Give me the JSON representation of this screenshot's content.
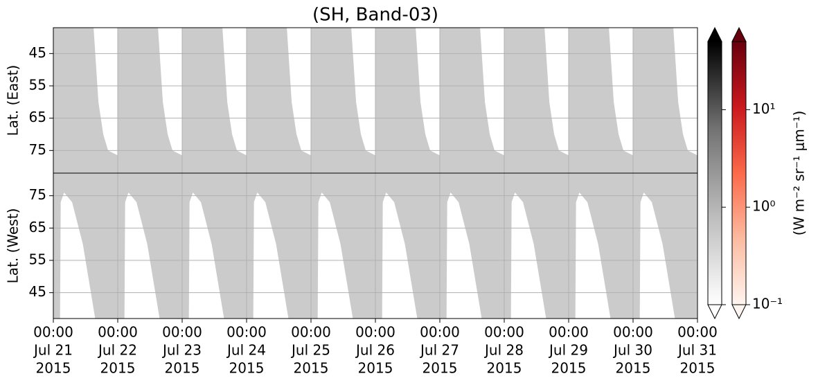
{
  "chart_data": {
    "type": "area",
    "title": "(SH, Band-03)",
    "xlim": [
      "2015-07-21 00:00",
      "2015-07-31 00:00"
    ],
    "xticks": [
      {
        "value": "2015-07-21 00:00",
        "label": [
          "00:00",
          "Jul 21",
          "2015"
        ]
      },
      {
        "value": "2015-07-22 00:00",
        "label": [
          "00:00",
          "Jul 22",
          "2015"
        ]
      },
      {
        "value": "2015-07-23 00:00",
        "label": [
          "00:00",
          "Jul 23",
          "2015"
        ]
      },
      {
        "value": "2015-07-24 00:00",
        "label": [
          "00:00",
          "Jul 24",
          "2015"
        ]
      },
      {
        "value": "2015-07-25 00:00",
        "label": [
          "00:00",
          "Jul 25",
          "2015"
        ]
      },
      {
        "value": "2015-07-26 00:00",
        "label": [
          "00:00",
          "Jul 26",
          "2015"
        ]
      },
      {
        "value": "2015-07-27 00:00",
        "label": [
          "00:00",
          "Jul 27",
          "2015"
        ]
      },
      {
        "value": "2015-07-28 00:00",
        "label": [
          "00:00",
          "Jul 28",
          "2015"
        ]
      },
      {
        "value": "2015-07-29 00:00",
        "label": [
          "00:00",
          "Jul 29",
          "2015"
        ]
      },
      {
        "value": "2015-07-30 00:00",
        "label": [
          "00:00",
          "Jul 30",
          "2015"
        ]
      },
      {
        "value": "2015-07-31 00:00",
        "label": [
          "00:00",
          "Jul 31",
          "2015"
        ]
      }
    ],
    "grid": true,
    "panels": [
      {
        "ylabel": "Lat. (East)",
        "ylim": [
          37,
          82
        ],
        "yticks": [
          45,
          55,
          65,
          75
        ],
        "fill_side": "high",
        "series": [
          {
            "color": "#cbcbcb",
            "x": [
              "2015-07-21 00:00",
              "2015-07-21 15:00",
              "2015-07-21 16:48",
              "2015-07-21 18:36",
              "2015-07-21 20:24",
              "2015-07-21 23:59",
              "2015-07-22 00:00",
              "2015-07-22 15:00",
              "2015-07-22 16:48",
              "2015-07-22 18:36",
              "2015-07-22 20:24",
              "2015-07-22 23:59",
              "2015-07-23 00:00",
              "2015-07-23 15:00",
              "2015-07-23 16:48",
              "2015-07-23 18:36",
              "2015-07-23 20:24",
              "2015-07-23 23:59",
              "2015-07-24 00:00",
              "2015-07-24 15:00",
              "2015-07-24 16:48",
              "2015-07-24 18:36",
              "2015-07-24 20:24",
              "2015-07-24 23:59",
              "2015-07-25 00:00",
              "2015-07-25 15:00",
              "2015-07-25 16:48",
              "2015-07-25 18:36",
              "2015-07-25 20:24",
              "2015-07-25 23:59",
              "2015-07-26 00:00",
              "2015-07-26 15:00",
              "2015-07-26 16:48",
              "2015-07-26 18:36",
              "2015-07-26 20:24",
              "2015-07-26 23:59",
              "2015-07-27 00:00",
              "2015-07-27 15:00",
              "2015-07-27 16:48",
              "2015-07-27 18:36",
              "2015-07-27 20:24",
              "2015-07-27 23:59",
              "2015-07-28 00:00",
              "2015-07-28 15:00",
              "2015-07-28 16:48",
              "2015-07-28 18:36",
              "2015-07-28 20:24",
              "2015-07-28 23:59",
              "2015-07-29 00:00",
              "2015-07-29 15:00",
              "2015-07-29 16:48",
              "2015-07-29 18:36",
              "2015-07-29 20:24",
              "2015-07-29 23:59",
              "2015-07-30 00:00",
              "2015-07-30 15:00",
              "2015-07-30 16:48",
              "2015-07-30 18:36",
              "2015-07-30 20:24",
              "2015-07-30 23:59"
            ],
            "values": [
              37,
              37,
              60,
              70,
              75,
              76.5,
              37,
              37,
              60,
              70,
              75,
              76.5,
              37,
              37,
              60,
              70,
              75,
              76.5,
              37,
              37,
              60,
              70,
              75,
              76.5,
              37,
              37,
              60,
              70,
              75,
              76.5,
              37,
              37,
              60,
              70,
              75,
              76.5,
              37,
              37,
              60,
              70,
              75,
              76.5,
              37,
              37,
              60,
              70,
              75,
              76.5,
              37,
              37,
              60,
              70,
              75,
              76.5,
              37,
              37,
              60,
              70,
              75,
              76.5
            ]
          }
        ]
      },
      {
        "ylabel": "Lat. (West)",
        "ylim": [
          82,
          37
        ],
        "yticks": [
          75,
          65,
          55,
          45
        ],
        "fill_side": "high",
        "series": [
          {
            "color": "#cbcbcb",
            "x": [
              "2015-07-21 00:00",
              "2015-07-21 02:30",
              "2015-07-21 02:45",
              "2015-07-21 04:00",
              "2015-07-21 07:00",
              "2015-07-21 11:00",
              "2015-07-21 15:36",
              "2015-07-22 00:00",
              "2015-07-22 02:30",
              "2015-07-22 02:45",
              "2015-07-22 04:00",
              "2015-07-22 07:00",
              "2015-07-22 11:00",
              "2015-07-22 15:36",
              "2015-07-23 00:00",
              "2015-07-23 02:30",
              "2015-07-23 02:45",
              "2015-07-23 04:00",
              "2015-07-23 07:00",
              "2015-07-23 11:00",
              "2015-07-23 15:36",
              "2015-07-24 00:00",
              "2015-07-24 02:30",
              "2015-07-24 02:45",
              "2015-07-24 04:00",
              "2015-07-24 07:00",
              "2015-07-24 11:00",
              "2015-07-24 15:36",
              "2015-07-25 00:00",
              "2015-07-25 02:30",
              "2015-07-25 02:45",
              "2015-07-25 04:00",
              "2015-07-25 07:00",
              "2015-07-25 11:00",
              "2015-07-25 15:36",
              "2015-07-26 00:00",
              "2015-07-26 02:30",
              "2015-07-26 02:45",
              "2015-07-26 04:00",
              "2015-07-26 07:00",
              "2015-07-26 11:00",
              "2015-07-26 15:36",
              "2015-07-27 00:00",
              "2015-07-27 02:30",
              "2015-07-27 02:45",
              "2015-07-27 04:00",
              "2015-07-27 07:00",
              "2015-07-27 11:00",
              "2015-07-27 15:36",
              "2015-07-28 00:00",
              "2015-07-28 02:30",
              "2015-07-28 02:45",
              "2015-07-28 04:00",
              "2015-07-28 07:00",
              "2015-07-28 11:00",
              "2015-07-28 15:36",
              "2015-07-29 00:00",
              "2015-07-29 02:30",
              "2015-07-29 02:45",
              "2015-07-29 04:00",
              "2015-07-29 07:00",
              "2015-07-29 11:00",
              "2015-07-29 15:36",
              "2015-07-30 00:00",
              "2015-07-30 02:30",
              "2015-07-30 02:45",
              "2015-07-30 04:00",
              "2015-07-30 07:00",
              "2015-07-30 11:00",
              "2015-07-30 15:36",
              "2015-07-31 00:00"
            ],
            "values": [
              37,
              37,
              73,
              76,
              73,
              60,
              37,
              37,
              37,
              73,
              76,
              73,
              60,
              37,
              37,
              37,
              73,
              76,
              73,
              60,
              37,
              37,
              37,
              73,
              76,
              73,
              60,
              37,
              37,
              37,
              73,
              76,
              73,
              60,
              37,
              37,
              37,
              73,
              76,
              73,
              60,
              37,
              37,
              37,
              73,
              76,
              73,
              60,
              37,
              37,
              37,
              73,
              76,
              73,
              60,
              37,
              37,
              37,
              73,
              76,
              73,
              60,
              37,
              37,
              37,
              73,
              76,
              73,
              60,
              37,
              37
            ]
          }
        ]
      }
    ],
    "colorbar_label": "(W m⁻² sr⁻¹ μm⁻¹)",
    "clim": [
      0.1,
      50
    ],
    "log_scale": true,
    "cticks": [
      {
        "value": 0.1,
        "label": "10⁻¹"
      },
      {
        "value": 1,
        "label": "10⁰"
      },
      {
        "value": 10,
        "label": "10¹"
      }
    ],
    "colorbars": [
      {
        "colors": [
          "#ffffff",
          "#bdbdbd",
          "#737373",
          "#000000"
        ]
      },
      {
        "colors": [
          "#fff5f0",
          "#fcbba1",
          "#fb6a4a",
          "#cb181d",
          "#67000d"
        ]
      }
    ]
  }
}
